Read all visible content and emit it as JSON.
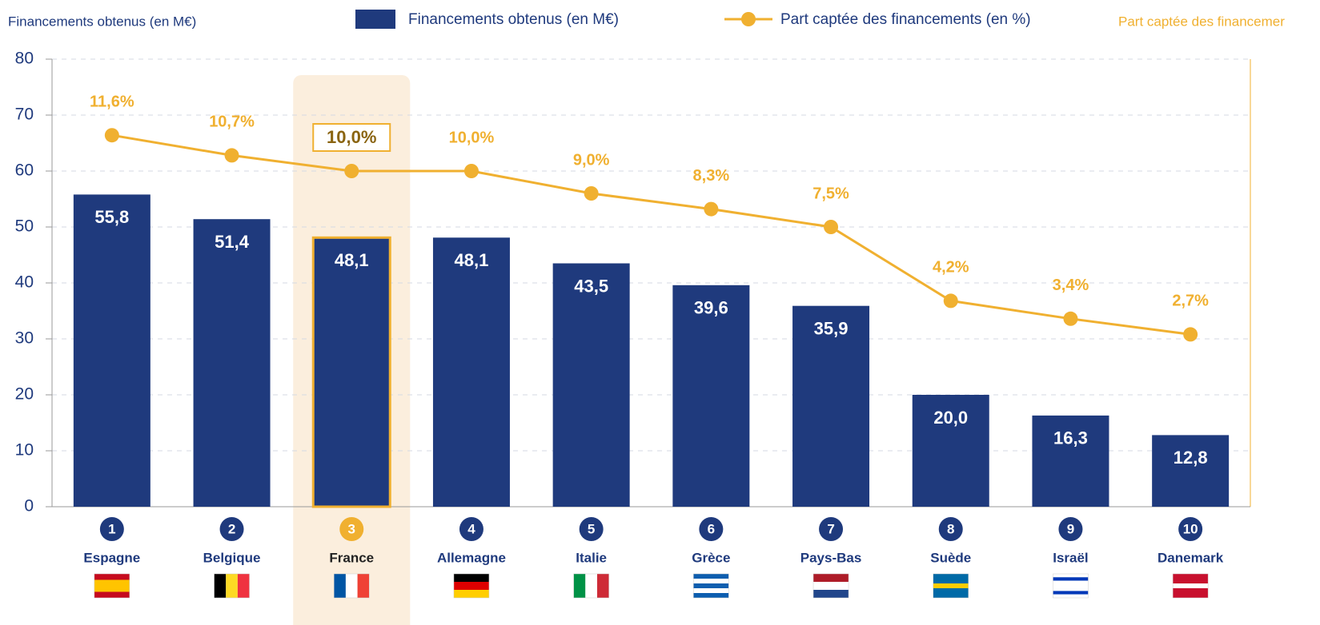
{
  "chart_data": {
    "type": "combo",
    "ylabel": "Financements obtenus (en M€)",
    "y2label": "Part captée des financemer",
    "categories": [
      "Espagne",
      "Belgique",
      "France",
      "Allemagne",
      "Italie",
      "Grèce",
      "Pays-Bas",
      "Suède",
      "Israël",
      "Danemark"
    ],
    "ranks": [
      "1",
      "2",
      "3",
      "4",
      "5",
      "6",
      "7",
      "8",
      "9",
      "10"
    ],
    "highlight_category": "France",
    "series": [
      {
        "name": "Financements obtenus (en M€)",
        "type": "bar",
        "color": "#1f3a7d",
        "values": [
          55.8,
          51.4,
          48.1,
          48.1,
          43.5,
          39.6,
          35.9,
          20.0,
          16.3,
          12.8
        ],
        "value_labels": [
          "55,8",
          "51,4",
          "48,1",
          "48,1",
          "43,5",
          "39,6",
          "35,9",
          "20,0",
          "16,3",
          "12,8"
        ]
      },
      {
        "name": "Part captée des financements (en %)",
        "type": "line",
        "axis": "y2",
        "color": "#f0b030",
        "values": [
          11.6,
          10.7,
          10.0,
          10.0,
          9.0,
          8.3,
          7.5,
          4.2,
          3.4,
          2.7
        ],
        "value_labels": [
          "11,6%",
          "10,7%",
          "10,0%",
          "10,0%",
          "9,0%",
          "8,3%",
          "7,5%",
          "4,2%",
          "3,4%",
          "2,7%"
        ]
      }
    ],
    "ylim": [
      0,
      80
    ],
    "yticks": [
      0,
      10,
      20,
      30,
      40,
      50,
      60,
      70,
      80
    ],
    "y2lim": [
      -5,
      15
    ],
    "grid": true
  }
}
